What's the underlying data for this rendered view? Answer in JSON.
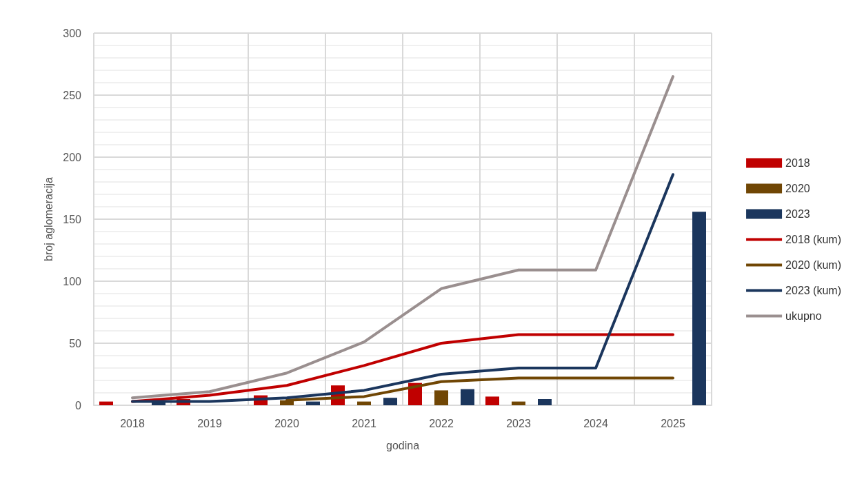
{
  "chart_data": {
    "type": "bar",
    "xlabel": "godina",
    "ylabel": "broj aglomeracija",
    "categories": [
      "2018",
      "2019",
      "2020",
      "2021",
      "2022",
      "2023",
      "2024",
      "2025"
    ],
    "series": [
      {
        "name": "2018",
        "color": "#c00000",
        "values": [
          3,
          5,
          8,
          16,
          18,
          7,
          0,
          0
        ]
      },
      {
        "name": "2020",
        "color": "#704604",
        "values": [
          0,
          0,
          4,
          3,
          12,
          3,
          0,
          0
        ]
      },
      {
        "name": "2023",
        "color": "#1b365d",
        "values": [
          3,
          0,
          3,
          6,
          13,
          5,
          0,
          156
        ]
      },
      {
        "name": "2018 (kum)",
        "type": "line",
        "color": "#c00000",
        "values": [
          3,
          8,
          16,
          32,
          50,
          57,
          57,
          57
        ]
      },
      {
        "name": "2020 (kum)",
        "type": "line",
        "color": "#704604",
        "values": [
          null,
          null,
          4,
          7,
          19,
          22,
          22,
          22
        ]
      },
      {
        "name": "2023 (kum)",
        "type": "line",
        "color": "#1b365d",
        "values": [
          3,
          3,
          6,
          12,
          25,
          30,
          30,
          186
        ]
      },
      {
        "name": "ukupno",
        "type": "line",
        "color": "#9a8f8f",
        "values": [
          6,
          11,
          26,
          51,
          94,
          109,
          109,
          265
        ]
      }
    ],
    "ylim": [
      0,
      300
    ],
    "yticks": [
      0,
      50,
      100,
      150,
      200,
      250,
      300
    ],
    "grid": true,
    "legend": "right",
    "marker": "none",
    "line_style": "solid"
  }
}
